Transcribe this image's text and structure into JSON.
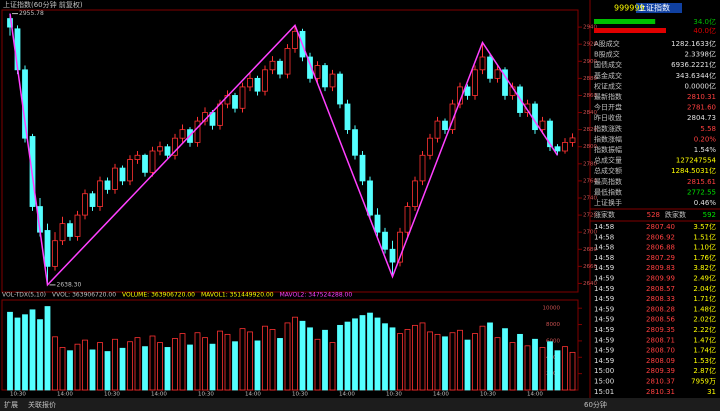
{
  "chart_data": {
    "type": "candlestick",
    "title": "上证指数(60分钟 前复权)",
    "ylim": [
      2630,
      2960
    ],
    "yticks": [
      2640,
      2660,
      2680,
      2700,
      2720,
      2740,
      2760,
      2780,
      2800,
      2820,
      2840,
      2860,
      2880,
      2900,
      2920,
      2940
    ],
    "up_color": "#ff3232",
    "down_color": "#54ffff",
    "candles": [
      [
        2950,
        2955.78,
        2930,
        2940
      ],
      [
        2938,
        2942,
        2885,
        2890
      ],
      [
        2890,
        2895,
        2805,
        2810
      ],
      [
        2812,
        2815,
        2725,
        2730
      ],
      [
        2730,
        2740,
        2695,
        2700
      ],
      [
        2702,
        2710,
        2638.3,
        2660
      ],
      [
        2660,
        2700,
        2655,
        2690
      ],
      [
        2690,
        2718,
        2685,
        2710
      ],
      [
        2710,
        2714,
        2690,
        2695
      ],
      [
        2695,
        2725,
        2690,
        2720
      ],
      [
        2720,
        2750,
        2715,
        2745
      ],
      [
        2745,
        2748,
        2725,
        2730
      ],
      [
        2730,
        2765,
        2725,
        2760
      ],
      [
        2760,
        2764,
        2745,
        2750
      ],
      [
        2750,
        2780,
        2745,
        2775
      ],
      [
        2775,
        2778,
        2755,
        2760
      ],
      [
        2760,
        2790,
        2755,
        2785
      ],
      [
        2785,
        2795,
        2780,
        2790
      ],
      [
        2790,
        2792,
        2765,
        2770
      ],
      [
        2770,
        2800,
        2765,
        2795
      ],
      [
        2795,
        2806,
        2790,
        2800
      ],
      [
        2800,
        2803,
        2785,
        2790
      ],
      [
        2790,
        2815,
        2785,
        2810
      ],
      [
        2810,
        2826,
        2805,
        2820
      ],
      [
        2820,
        2823,
        2800,
        2805
      ],
      [
        2805,
        2835,
        2800,
        2830
      ],
      [
        2830,
        2846,
        2825,
        2840
      ],
      [
        2840,
        2843,
        2820,
        2825
      ],
      [
        2825,
        2855,
        2820,
        2850
      ],
      [
        2850,
        2866,
        2845,
        2860
      ],
      [
        2860,
        2863,
        2840,
        2845
      ],
      [
        2845,
        2875,
        2840,
        2870
      ],
      [
        2870,
        2886,
        2865,
        2880
      ],
      [
        2880,
        2883,
        2860,
        2865
      ],
      [
        2865,
        2895,
        2860,
        2890
      ],
      [
        2890,
        2906,
        2885,
        2900
      ],
      [
        2900,
        2903,
        2880,
        2885
      ],
      [
        2885,
        2920,
        2880,
        2915
      ],
      [
        2915,
        2942,
        2910,
        2935
      ],
      [
        2935,
        2938,
        2900,
        2905
      ],
      [
        2905,
        2910,
        2875,
        2880
      ],
      [
        2880,
        2900,
        2875,
        2895
      ],
      [
        2895,
        2898,
        2865,
        2870
      ],
      [
        2870,
        2890,
        2865,
        2885
      ],
      [
        2885,
        2888,
        2845,
        2850
      ],
      [
        2850,
        2855,
        2815,
        2820
      ],
      [
        2820,
        2825,
        2785,
        2790
      ],
      [
        2790,
        2795,
        2755,
        2760
      ],
      [
        2760,
        2765,
        2715,
        2720
      ],
      [
        2720,
        2728,
        2695,
        2700
      ],
      [
        2700,
        2705,
        2675,
        2680
      ],
      [
        2680,
        2690,
        2648,
        2665
      ],
      [
        2665,
        2705,
        2660,
        2700
      ],
      [
        2700,
        2735,
        2695,
        2730
      ],
      [
        2730,
        2765,
        2725,
        2760
      ],
      [
        2760,
        2795,
        2755,
        2790
      ],
      [
        2790,
        2815,
        2785,
        2810
      ],
      [
        2810,
        2835,
        2805,
        2830
      ],
      [
        2830,
        2833,
        2815,
        2820
      ],
      [
        2820,
        2855,
        2815,
        2850
      ],
      [
        2850,
        2875,
        2845,
        2870
      ],
      [
        2870,
        2873,
        2855,
        2860
      ],
      [
        2860,
        2895,
        2855,
        2890
      ],
      [
        2890,
        2922,
        2885,
        2905
      ],
      [
        2905,
        2908,
        2875,
        2880
      ],
      [
        2880,
        2895,
        2875,
        2890
      ],
      [
        2890,
        2893,
        2855,
        2860
      ],
      [
        2860,
        2875,
        2855,
        2870
      ],
      [
        2870,
        2873,
        2835,
        2840
      ],
      [
        2840,
        2855,
        2835,
        2850
      ],
      [
        2850,
        2853,
        2815,
        2820
      ],
      [
        2820,
        2835,
        2815,
        2830
      ],
      [
        2830,
        2833,
        2795,
        2800
      ],
      [
        2800,
        2803,
        2790,
        2795
      ],
      [
        2795,
        2810,
        2792,
        2805
      ],
      [
        2805,
        2815.61,
        2800,
        2810.31
      ]
    ],
    "zigzag": {
      "color": "#ff40ff",
      "x": [
        0,
        5,
        38,
        51,
        63,
        73
      ],
      "y": [
        2955.78,
        2638.3,
        2942,
        2648,
        2922,
        2790
      ]
    },
    "annotations": [
      {
        "text": "2955.78",
        "x": 0,
        "y": 2955.78
      },
      {
        "text": "2638.30",
        "x": 5,
        "y": 2638.3
      }
    ],
    "volume": {
      "ylim": [
        0,
        11000
      ],
      "yticks": [
        2000,
        4000,
        6000,
        8000,
        10000
      ],
      "values": [
        9500,
        8800,
        9200,
        9800,
        8600,
        10200,
        6500,
        5200,
        4800,
        5600,
        6100,
        4900,
        5800,
        4700,
        6200,
        5100,
        5900,
        6400,
        5300,
        6600,
        5800,
        5200,
        6300,
        6900,
        5500,
        7000,
        6400,
        5600,
        7200,
        6800,
        5900,
        7500,
        7100,
        6000,
        7800,
        7400,
        6300,
        8200,
        8900,
        8400,
        7600,
        6200,
        7300,
        5800,
        7900,
        8300,
        8700,
        9100,
        9400,
        8800,
        8100,
        7600,
        6900,
        7400,
        7900,
        8200,
        7100,
        6800,
        6500,
        7000,
        7300,
        6100,
        6900,
        7800,
        8200,
        6400,
        7500,
        5800,
        6800,
        5400,
        6200,
        5200,
        5900,
        4800,
        5300,
        4600
      ],
      "legend": [
        {
          "text": "VOL-TDX(5,10)",
          "color": "#c0c0c0"
        },
        {
          "text": "VVOL: 363906720.00",
          "color": "#c0c0c0"
        },
        {
          "text": "VOLUME: 363906720.00",
          "color": "#ffff00"
        },
        {
          "text": "MAVOL1: 351449920.00",
          "color": "#ffff00"
        },
        {
          "text": "MAVOL2: 347524288.00",
          "color": "#ff40ff"
        }
      ]
    },
    "x_labels": [
      "10:30",
      "14:00",
      "10:30",
      "14:00",
      "10:30",
      "14:00",
      "10:30",
      "14:00",
      "10:30",
      "14:00",
      "10:30",
      "14:00"
    ]
  },
  "panel": {
    "code": "999999",
    "name": "上证指数",
    "bars": [
      {
        "value": 34.0,
        "label": "34.0亿",
        "color": "#00c000"
      },
      {
        "value": 40.0,
        "label": "40.0亿",
        "color": "#e00000"
      }
    ],
    "rows": [
      {
        "label": "A股成交",
        "value": "1282.1633亿",
        "color": "#e0e0e0"
      },
      {
        "label": "B股成交",
        "value": "2.3398亿",
        "color": "#e0e0e0"
      },
      {
        "label": "国债成交",
        "value": "6936.2221亿",
        "color": "#e0e0e0"
      },
      {
        "label": "基金成交",
        "value": "343.6344亿",
        "color": "#e0e0e0"
      },
      {
        "label": "权证成交",
        "value": "0.0000亿",
        "color": "#e0e0e0"
      },
      {
        "label": "最新指数",
        "value": "2810.31",
        "color": "#ff4040"
      },
      {
        "label": "今日开盘",
        "value": "2781.60",
        "color": "#ff4040"
      },
      {
        "label": "昨日收盘",
        "value": "2804.73",
        "color": "#e0e0e0"
      },
      {
        "label": "指数涨跌",
        "value": "5.58",
        "color": "#ff4040"
      },
      {
        "label": "指数涨幅",
        "value": "0.20%",
        "color": "#ff4040"
      },
      {
        "label": "指数振幅",
        "value": "1.54%",
        "color": "#e0e0e0"
      },
      {
        "label": "总成交量",
        "value": "127247554",
        "color": "#ffff00"
      },
      {
        "label": "总成交额",
        "value": "1284.5031亿",
        "color": "#ffff00"
      },
      {
        "label": "最高指数",
        "value": "2815.61",
        "color": "#ff4040"
      },
      {
        "label": "最低指数",
        "value": "2772.55",
        "color": "#00e000"
      },
      {
        "label": "上证换手",
        "value": "0.46%",
        "color": "#e0e0e0"
      }
    ],
    "breadth": {
      "up_label": "涨家数",
      "up": "528",
      "down_label": "跌家数",
      "down": "592"
    },
    "trades": [
      [
        "14:58",
        "2807.40",
        "3.57亿"
      ],
      [
        "14:58",
        "2806.92",
        "1.51亿"
      ],
      [
        "14:58",
        "2806.88",
        "1.10亿"
      ],
      [
        "14:58",
        "2807.29",
        "1.76亿"
      ],
      [
        "14:59",
        "2809.83",
        "3.82亿"
      ],
      [
        "14:59",
        "2809.99",
        "2.49亿"
      ],
      [
        "14:59",
        "2808.57",
        "2.04亿"
      ],
      [
        "14:59",
        "2808.33",
        "1.71亿"
      ],
      [
        "14:59",
        "2808.28",
        "1.48亿"
      ],
      [
        "14:59",
        "2808.56",
        "2.02亿"
      ],
      [
        "14:59",
        "2809.35",
        "2.22亿"
      ],
      [
        "14:59",
        "2808.71",
        "1.47亿"
      ],
      [
        "14:59",
        "2808.70",
        "1.74亿"
      ],
      [
        "14:59",
        "2808.09",
        "1.53亿"
      ],
      [
        "15:00",
        "2809.39",
        "2.87亿"
      ],
      [
        "15:00",
        "2810.37",
        "7959万"
      ],
      [
        "15:01",
        "2810.31",
        "31"
      ]
    ]
  },
  "toolbar": {
    "left": [
      "扩展",
      "关联报价"
    ],
    "period": "60分钟"
  }
}
